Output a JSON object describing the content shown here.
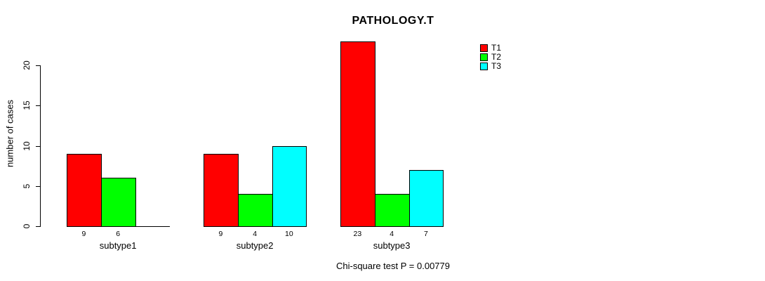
{
  "title": "PATHOLOGY.T",
  "footnote": "Chi-square test P = 0.00779",
  "chart_data": {
    "type": "bar",
    "title": "PATHOLOGY.T",
    "xlabel": "",
    "ylabel": "number of cases",
    "categories": [
      "subtype1",
      "subtype2",
      "subtype3"
    ],
    "series": [
      {
        "name": "T1",
        "color": "#FF0000",
        "values": [
          9,
          9,
          23
        ]
      },
      {
        "name": "T2",
        "color": "#00FF00",
        "values": [
          6,
          4,
          4
        ]
      },
      {
        "name": "T3",
        "color": "#00FFFF",
        "values": [
          0,
          10,
          7
        ]
      }
    ],
    "bar_value_labels": [
      [
        "9",
        "6",
        ""
      ],
      [
        "9",
        "4",
        "10"
      ],
      [
        "23",
        "4",
        "7"
      ]
    ],
    "ylim": [
      0,
      23
    ],
    "y_ticks": [
      0,
      5,
      10,
      15,
      20
    ],
    "grid": false,
    "legend_position": "top-right",
    "annotation": "Chi-square test P = 0.00779"
  }
}
